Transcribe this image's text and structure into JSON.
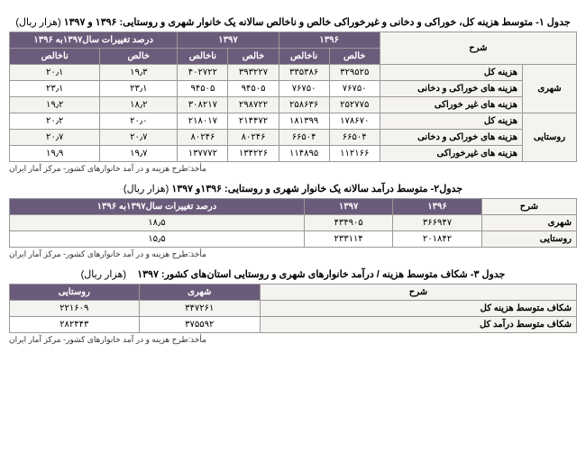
{
  "table1": {
    "title": "جدول ۱- متوسط هزینه کل، خوراکی و دخانی و غیرخوراکی خالص و ناخالص سالانه یک خانوار شهری و روستایی: ۱۳۹۶ و ۱۳۹۷",
    "unit": "(هزار ریال)",
    "headers": {
      "desc": "شرح",
      "y1396": "۱۳۹۶",
      "y1397": "۱۳۹۷",
      "change": "درصد تغییرات سال۱۳۹۷به ۱۳۹۶",
      "khales": "خالص",
      "nakhales": "ناخالص"
    },
    "categories": [
      "شهری",
      "روستایی"
    ],
    "rowLabels": [
      "هزینه کل",
      "هزینه های خوراکی و دخانی",
      "هزینه های غیر خوراکی",
      "هزینه کل",
      "هزینه های خوراکی و دخانی",
      "هزینه های غیرخوراکی"
    ],
    "rows": [
      [
        "۳۲۹۵۲۵",
        "۳۳۵۳۸۶",
        "۳۹۳۲۲۷",
        "۴۰۲۷۲۲",
        "۱۹٫۳",
        "۲۰٫۱"
      ],
      [
        "۷۶۷۵۰",
        "۷۶۷۵۰",
        "۹۴۵۰۵",
        "۹۴۵۰۵",
        "۲۳٫۱",
        "۲۳٫۱"
      ],
      [
        "۲۵۲۷۷۵",
        "۲۵۸۶۳۶",
        "۲۹۸۷۲۲",
        "۳۰۸۲۱۷",
        "۱۸٫۲",
        "۱۹٫۲"
      ],
      [
        "۱۷۸۶۷۰",
        "۱۸۱۳۹۹",
        "۲۱۴۴۷۲",
        "۲۱۸۰۱۷",
        "۲۰٫۰",
        "۲۰٫۲"
      ],
      [
        "۶۶۵۰۴",
        "۶۶۵۰۴",
        "۸۰۲۴۶",
        "۸۰۲۴۶",
        "۲۰٫۷",
        "۲۰٫۷"
      ],
      [
        "۱۱۲۱۶۶",
        "۱۱۴۸۹۵",
        "۱۳۴۲۲۶",
        "۱۳۷۷۷۲",
        "۱۹٫۷",
        "۱۹٫۹"
      ]
    ],
    "source": "مأخذ:طرح هزینه و در آمد خانوارهای کشور- مرکز آمار ایران"
  },
  "table2": {
    "title": "جدول۲-  متوسط درآمد سالانه یک خانوار شهری و روستایی: ۱۳۹۶و ۱۳۹۷",
    "unit": "(هزار ریال)",
    "headers": {
      "desc": "شرح",
      "y1396": "۱۳۹۶",
      "y1397": "۱۳۹۷",
      "change": "درصد تغییرات سال۱۳۹۷به ۱۳۹۶"
    },
    "rows": [
      {
        "label": "شهری",
        "v1396": "۳۶۶۹۴۷",
        "v1397": "۴۳۴۹۰۵",
        "change": "۱۸٫۵"
      },
      {
        "label": "روستایی",
        "v1396": "۲۰۱۸۴۲",
        "v1397": "۲۳۳۱۱۴",
        "change": "۱۵٫۵"
      }
    ],
    "source": "مأخذ:طرح هزینه و در آمد خانوارهای کشور- مرکز آمار ایران"
  },
  "table3": {
    "title": "جدول ۳- شکاف متوسط هزینه / درآمد خانوارهای شهری و روستایی استان‌های کشور: ۱۳۹۷",
    "unit": "(هزار ریال)",
    "headers": {
      "desc": "شرح",
      "urban": "شهری",
      "rural": "روستایی"
    },
    "rows": [
      {
        "label": "شکاف متوسط هزینه کل",
        "urban": "۳۴۷۲۶۱",
        "rural": "۲۲۱۶۰۹"
      },
      {
        "label": "شکاف متوسط درآمد کل",
        "urban": "۳۷۵۵۹۲",
        "rural": "۲۸۲۴۴۳"
      }
    ],
    "source": "مأخذ:طرح هزینه و در آمد خانوارهای کشور- مرکز آمار ایران"
  }
}
